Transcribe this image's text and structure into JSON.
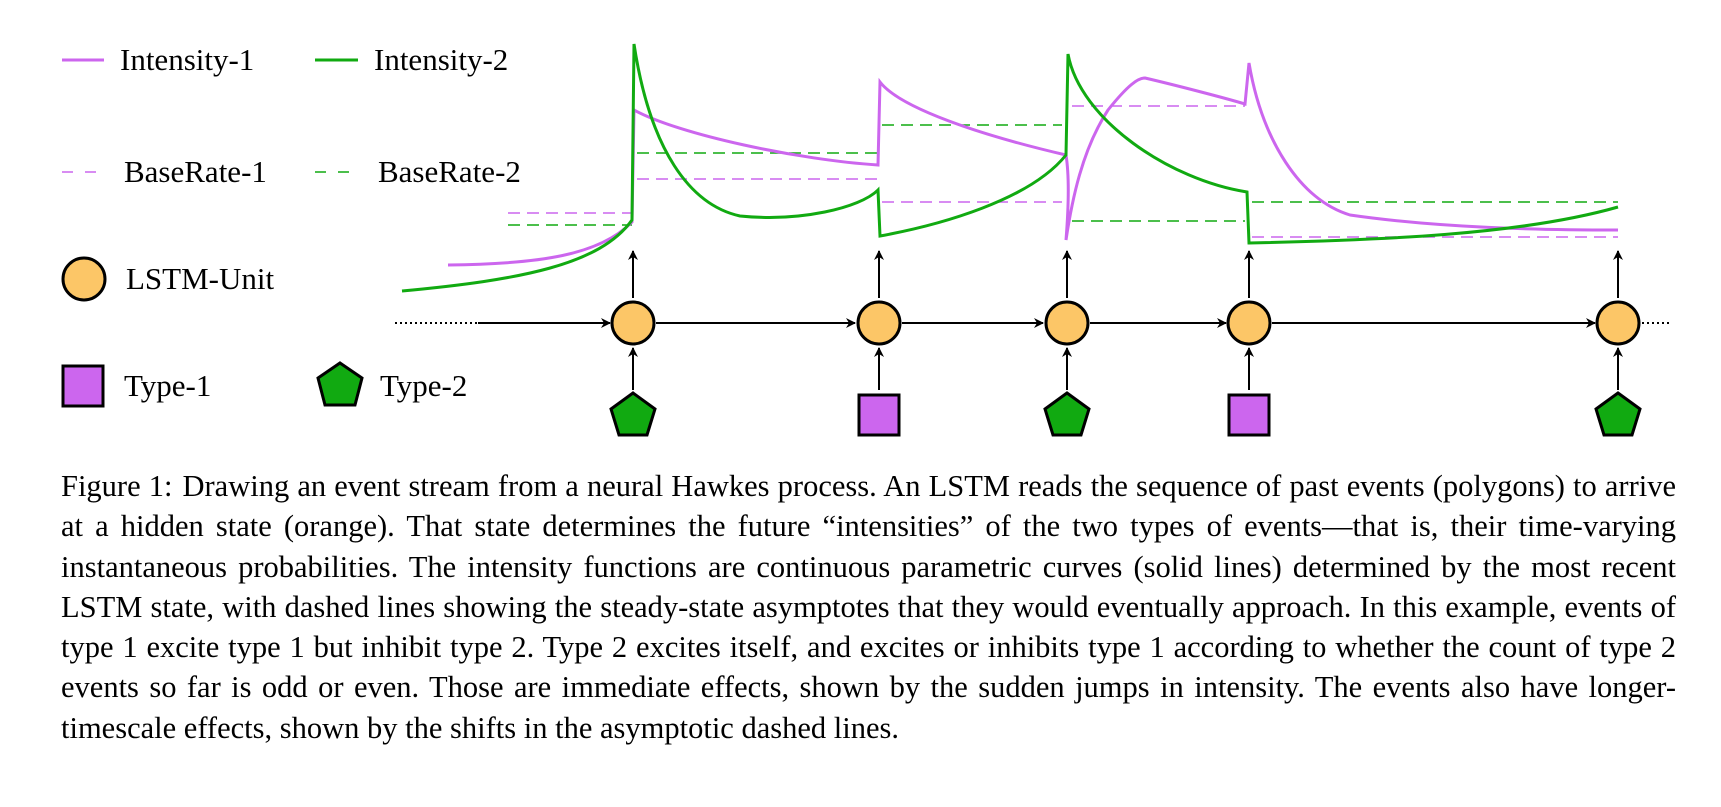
{
  "legend": {
    "intensity_1": "Intensity-1",
    "intensity_2": "Intensity-2",
    "baserate_1": "BaseRate-1",
    "baserate_2": "BaseRate-2",
    "lstm_unit": "LSTM-Unit",
    "type_1": "Type-1",
    "type_2": "Type-2"
  },
  "colors": {
    "type_1": "#cc66ee",
    "type_2": "#11aa11",
    "lstm": "#fcc667",
    "outline": "#000000"
  },
  "events": [
    {
      "type": 2
    },
    {
      "type": 1
    },
    {
      "type": 2
    },
    {
      "type": 1
    },
    {
      "type": 2
    }
  ],
  "caption": {
    "label": "Figure 1:",
    "text": "Drawing an event stream from a neural Hawkes process. An LSTM reads the sequence of past events (polygons) to arrive at a hidden state (orange). That state determines the future “intensities” of the two types of events—that is, their time-varying instantaneous probabilities. The intensity functions are continuous parametric curves (solid lines) determined by the most recent LSTM state, with dashed lines showing the steady-state asymptotes that they would eventually approach. In this example, events of type 1 excite type 1 but inhibit type 2. Type 2 excites itself, and excites or inhibits type 1 according to whether the count of type 2 events so far is odd or even. Those are immediate effects, shown by the sudden jumps in intensity. The events also have longer-timescale effects, shown by the shifts in the asymptotic dashed lines."
  }
}
